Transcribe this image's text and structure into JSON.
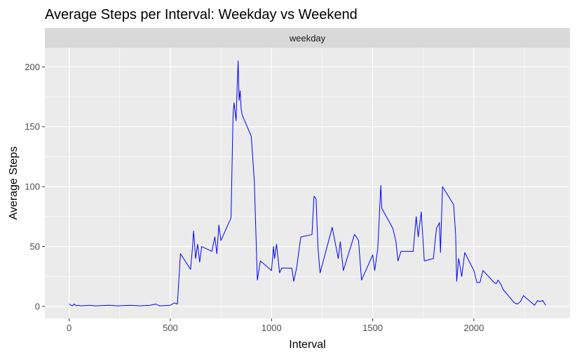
{
  "colors": {
    "panel_bg": "#ebebeb",
    "strip_bg": "#d9d9d9",
    "grid_major": "#ffffff",
    "line": "#0000ff",
    "tick_text": "#4d4d4d"
  },
  "chart_data": {
    "type": "line",
    "title": "Average Steps per Interval: Weekday vs Weekend",
    "facet_label": "weekday",
    "xlabel": "Interval",
    "ylabel": "Average Steps",
    "xlim": [
      -120,
      2475
    ],
    "ylim": [
      -10,
      216
    ],
    "x_ticks": [
      0,
      500,
      1000,
      1500,
      2000
    ],
    "y_ticks": [
      0,
      50,
      100,
      150,
      200
    ],
    "x_tick_labels": [
      "0",
      "500",
      "1000",
      "1500",
      "2000"
    ],
    "y_tick_labels": [
      "0",
      "50",
      "100",
      "150",
      "200"
    ],
    "grid": true,
    "legend": "none",
    "series": [
      {
        "x": [
          0,
          15,
          25,
          35,
          45,
          55,
          100,
          130,
          200,
          240,
          300,
          350,
          400,
          430,
          445,
          500,
          510,
          520,
          535,
          550,
          600,
          610,
          615,
          625,
          635,
          645,
          655,
          705,
          720,
          730,
          740,
          750,
          800,
          810,
          815,
          825,
          830,
          835,
          840,
          845,
          850,
          855,
          900,
          915,
          930,
          945,
          1000,
          1010,
          1015,
          1025,
          1040,
          1050,
          1100,
          1110,
          1125,
          1135,
          1145,
          1200,
          1210,
          1220,
          1230,
          1240,
          1300,
          1330,
          1340,
          1355,
          1410,
          1420,
          1430,
          1445,
          1500,
          1510,
          1525,
          1540,
          1545,
          1600,
          1615,
          1625,
          1640,
          1700,
          1715,
          1725,
          1740,
          1755,
          1800,
          1815,
          1830,
          1835,
          1845,
          1900,
          1910,
          1915,
          1925,
          1940,
          1955,
          2000,
          2015,
          2030,
          2045,
          2100,
          2110,
          2120,
          2135,
          2145,
          2200,
          2215,
          2230,
          2245,
          2300,
          2315,
          2325,
          2340,
          2355
        ],
        "y": [
          2,
          0.5,
          2,
          0.5,
          1,
          0.5,
          1,
          0.5,
          1,
          0.5,
          1,
          0.5,
          1,
          2,
          0.5,
          1,
          2,
          3,
          2,
          44,
          31,
          50,
          63,
          40,
          52,
          37,
          50,
          46,
          58,
          44,
          68,
          55,
          74,
          160,
          170,
          155,
          182,
          205,
          172,
          180,
          165,
          160,
          142,
          105,
          22,
          38,
          30,
          50,
          40,
          52,
          28,
          32,
          32,
          21,
          33,
          46,
          58,
          60,
          92,
          90,
          48,
          28,
          66,
          40,
          54,
          30,
          60,
          58,
          55,
          22,
          43,
          30,
          48,
          101,
          82,
          65,
          54,
          38,
          46,
          46,
          75,
          58,
          79,
          38,
          40,
          65,
          70,
          45,
          100,
          85,
          60,
          21,
          40,
          25,
          45,
          30,
          20,
          20,
          30,
          20,
          19,
          22,
          18,
          14,
          3,
          2,
          4,
          9,
          1,
          5,
          4,
          5,
          1
        ]
      }
    ]
  }
}
